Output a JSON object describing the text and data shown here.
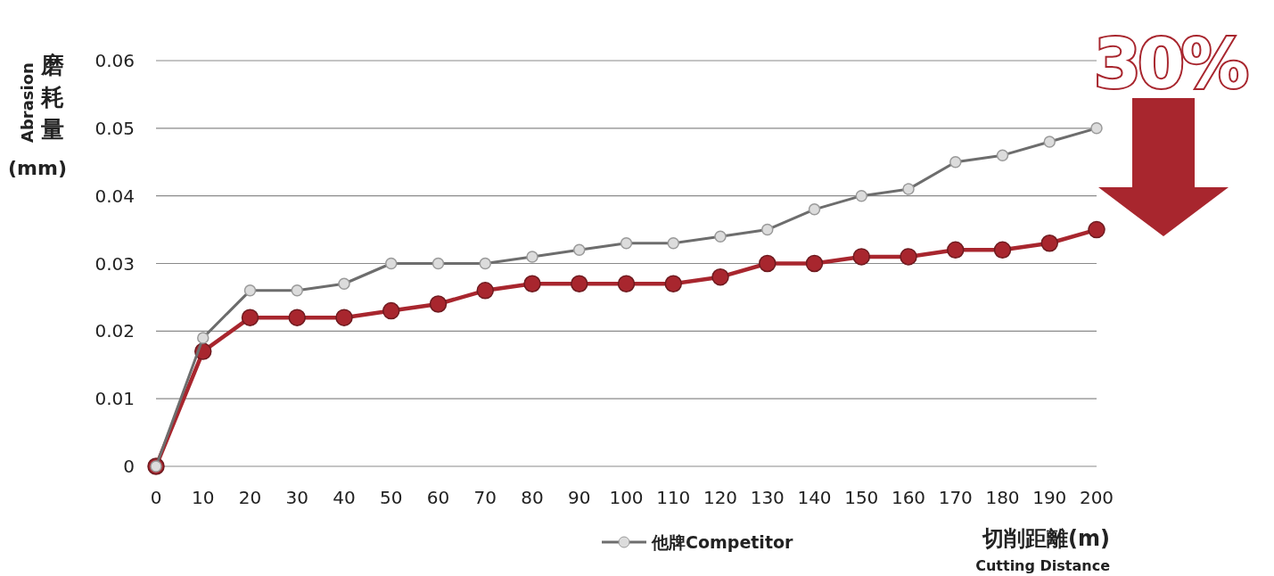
{
  "chart_data": {
    "type": "line",
    "xlabel": "切削距離(m)\nCutting Distance",
    "ylabel": "Abrasion\n磨耗量\n(mm)",
    "x": [
      0,
      10,
      20,
      30,
      40,
      50,
      60,
      70,
      80,
      90,
      100,
      110,
      120,
      130,
      140,
      150,
      160,
      170,
      180,
      190,
      200
    ],
    "series": [
      {
        "color": "#a8262e",
        "values": [
          0,
          0.017,
          0.022,
          0.022,
          0.022,
          0.023,
          0.024,
          0.026,
          0.027,
          0.027,
          0.027,
          0.027,
          0.028,
          0.03,
          0.03,
          0.031,
          0.031,
          0.032,
          0.032,
          0.033,
          0.035
        ]
      },
      {
        "name": "他牌Competitor",
        "color": "#6d6d6d",
        "values": [
          0,
          0.019,
          0.026,
          0.026,
          0.027,
          0.03,
          0.03,
          0.03,
          0.031,
          0.032,
          0.033,
          0.033,
          0.034,
          0.035,
          0.038,
          0.04,
          0.041,
          0.045,
          0.046,
          0.048,
          0.05
        ]
      }
    ],
    "xlim": [
      0,
      200
    ],
    "xticks": [
      0,
      10,
      20,
      30,
      40,
      50,
      60,
      70,
      80,
      90,
      100,
      110,
      120,
      130,
      140,
      150,
      160,
      170,
      180,
      190,
      200
    ],
    "ylim": [
      0,
      0.06
    ],
    "yticks": [
      0,
      0.01,
      0.02,
      0.03,
      0.04,
      0.05,
      0.06
    ],
    "grid": "y",
    "legend": "bottom",
    "marker": "circle",
    "line_style": "solid",
    "annotations": [
      "30%"
    ]
  }
}
